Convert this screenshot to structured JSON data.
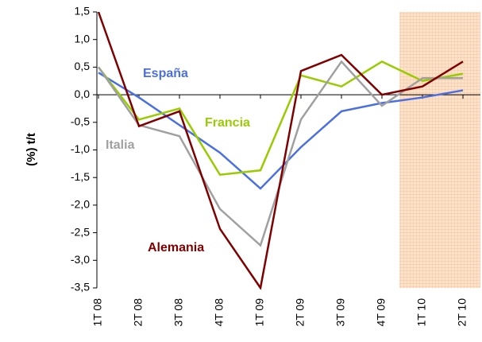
{
  "chart_data": {
    "type": "line",
    "y_label": "(%) t/t",
    "categories": [
      "1T 08",
      "2T 08",
      "3T 08",
      "4T 08",
      "1T 09",
      "2T 09",
      "3T 09",
      "4T 09",
      "1T 10",
      "2T 10"
    ],
    "series": [
      {
        "name": "España",
        "color": "#4a6fe3",
        "values": [
          0.4,
          -0.05,
          -0.55,
          -1.05,
          -1.7,
          -0.95,
          -0.3,
          -0.15,
          -0.05,
          0.08
        ]
      },
      {
        "name": "Francia",
        "color": "#99cc00",
        "values": [
          0.5,
          -0.45,
          -0.25,
          -1.45,
          -1.37,
          0.35,
          0.15,
          0.6,
          0.25,
          0.38
        ]
      },
      {
        "name": "Italia",
        "color": "#a0a0a0",
        "values": [
          0.5,
          -0.55,
          -0.75,
          -2.07,
          -2.73,
          -0.45,
          0.6,
          -0.2,
          0.3,
          0.3
        ]
      },
      {
        "name": "Alemania",
        "color": "#800000",
        "values": [
          1.5,
          -0.57,
          -0.3,
          -2.43,
          -3.5,
          0.43,
          0.72,
          0.0,
          0.15,
          0.6
        ]
      }
    ],
    "ylim": [
      -3.5,
      1.5
    ],
    "yticks": [
      {
        "value": 1.5,
        "label": "1,5"
      },
      {
        "value": 1.0,
        "label": "1,0"
      },
      {
        "value": 0.5,
        "label": "0,5"
      },
      {
        "value": 0.0,
        "label": "0,0"
      },
      {
        "value": -0.5,
        "label": "-0,5"
      },
      {
        "value": -1.0,
        "label": "-1,0"
      },
      {
        "value": -1.5,
        "label": "-1,5"
      },
      {
        "value": -2.0,
        "label": "-2,0"
      },
      {
        "value": -2.5,
        "label": "-2,5"
      },
      {
        "value": -3.0,
        "label": "-3,0"
      },
      {
        "value": -3.5,
        "label": "-3,5"
      }
    ]
  }
}
